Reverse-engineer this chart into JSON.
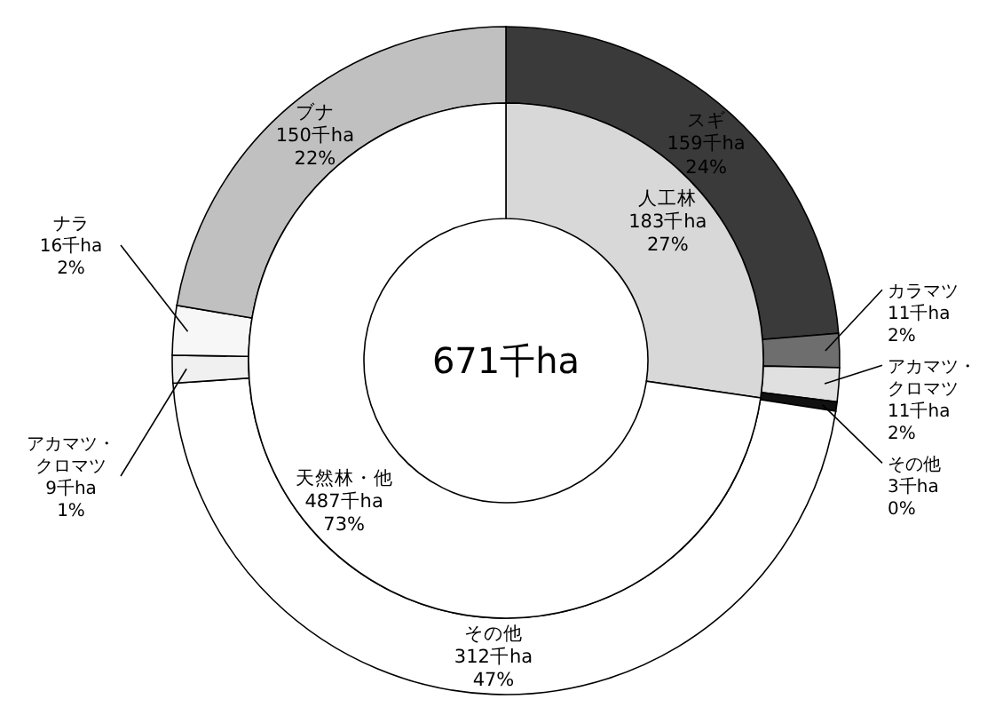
{
  "chart_data": [
    {
      "type": "donut",
      "categories": [
        "スギ",
        "カラマツ",
        "アカマツ・クロマツ",
        "その他",
        "その他",
        "アカマツ・クロマツ",
        "ナラ",
        "ブナ"
      ],
      "values": [
        159,
        11,
        11,
        3,
        312,
        9,
        16,
        150
      ],
      "colors": [
        "#3a3a3a",
        "#6e6e6e",
        "#e0e0e0",
        "#111111",
        "#ffffff",
        "#f0f0f0",
        "#f7f7f7",
        "#c0c0c0"
      ],
      "value_labels": [
        "159千ha\n24%",
        "11千ha\n2%",
        "11千ha\n2%",
        "3千ha\n0%",
        "312千ha\n47%",
        "9千ha\n1%",
        "16千ha\n2%",
        "150千ha\n22%"
      ]
    },
    {
      "type": "donut",
      "categories": [
        "人工林",
        "天然林・他"
      ],
      "values": [
        183,
        487
      ],
      "colors": [
        "#d8d8d8",
        "#ffffff"
      ],
      "value_labels": [
        "183千ha\n27%",
        "487千ha\n73%"
      ],
      "annotations": [
        "671千ha"
      ]
    }
  ]
}
